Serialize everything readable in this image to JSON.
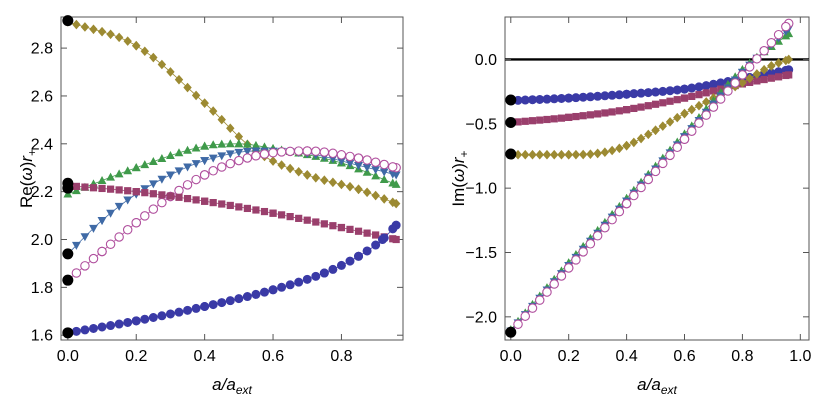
{
  "chart_data": [
    {
      "type": "scatter",
      "title": "",
      "xlabel": "a/a_ext",
      "ylabel": "Re(ω)r_+",
      "xlim": [
        -0.02,
        0.98
      ],
      "ylim": [
        1.58,
        2.93
      ],
      "xticks": [
        0.0,
        0.2,
        0.4,
        0.6,
        0.8
      ],
      "xtick_labels": [
        "0.0",
        "0.2",
        "0.4",
        "0.6",
        "0.8"
      ],
      "yticks": [
        1.6,
        1.8,
        2.0,
        2.2,
        2.4,
        2.6,
        2.8
      ],
      "ytick_labels": [
        "1.6",
        "1.8",
        "2.0",
        "2.2",
        "2.4",
        "2.6",
        "2.8"
      ],
      "black_points": [
        {
          "x": 0.0,
          "y": 2.915
        },
        {
          "x": 0.0,
          "y": 2.235
        },
        {
          "x": 0.0,
          "y": 2.215
        },
        {
          "x": 0.0,
          "y": 1.94
        },
        {
          "x": 0.0,
          "y": 1.83
        },
        {
          "x": 0.0,
          "y": 1.61
        }
      ],
      "series": [
        {
          "name": "olive-diamonds",
          "marker": "diamond",
          "color": "#9c8a32",
          "x": [
            0.0,
            0.2,
            0.4,
            0.55,
            0.7,
            0.85,
            0.96
          ],
          "y": [
            2.91,
            2.81,
            2.57,
            2.37,
            2.27,
            2.21,
            2.15
          ]
        },
        {
          "name": "green-triangles",
          "marker": "triangle-up",
          "color": "#3f9a4a",
          "x": [
            0.0,
            0.2,
            0.4,
            0.5,
            0.6,
            0.8,
            0.96
          ],
          "y": [
            2.19,
            2.3,
            2.39,
            2.4,
            2.38,
            2.32,
            2.23
          ]
        },
        {
          "name": "blue-triangles-down",
          "marker": "triangle-down",
          "color": "#3f6aa6",
          "x": [
            0.0,
            0.1,
            0.2,
            0.3,
            0.4,
            0.55,
            0.7,
            0.85,
            0.96
          ],
          "y": [
            1.94,
            2.08,
            2.19,
            2.27,
            2.33,
            2.37,
            2.36,
            2.31,
            2.27
          ]
        },
        {
          "name": "magenta-open-circles",
          "marker": "open-circle",
          "color": "#b0509e",
          "x": [
            0.0,
            0.1,
            0.2,
            0.3,
            0.4,
            0.55,
            0.7,
            0.85,
            0.96
          ],
          "y": [
            1.83,
            1.95,
            2.07,
            2.18,
            2.27,
            2.35,
            2.37,
            2.34,
            2.3
          ]
        },
        {
          "name": "purple-squares",
          "marker": "square",
          "color": "#9a3f6c",
          "x": [
            0.0,
            0.2,
            0.4,
            0.6,
            0.8,
            0.96
          ],
          "y": [
            2.225,
            2.2,
            2.16,
            2.11,
            2.05,
            2.0
          ]
        },
        {
          "name": "navy-circles",
          "marker": "circle",
          "color": "#3a3aa6",
          "x": [
            0.0,
            0.2,
            0.4,
            0.6,
            0.75,
            0.85,
            0.92,
            0.96
          ],
          "y": [
            1.61,
            1.66,
            1.72,
            1.79,
            1.86,
            1.93,
            2.0,
            2.06
          ]
        }
      ]
    },
    {
      "type": "scatter",
      "title": "",
      "xlabel": "a/a_ext",
      "ylabel": "Im(ω)r_+",
      "xlim": [
        -0.02,
        1.03
      ],
      "ylim": [
        -2.18,
        0.33
      ],
      "xticks": [
        0.0,
        0.2,
        0.4,
        0.6,
        0.8,
        1.0
      ],
      "xtick_labels": [
        "0.0",
        "0.2",
        "0.4",
        "0.6",
        "0.8",
        "1.0"
      ],
      "yticks": [
        0.0,
        -0.5,
        -1.0,
        -1.5,
        -2.0
      ],
      "ytick_labels": [
        "0.0",
        "−0.5",
        "−1.0",
        "−1.5",
        "−2.0"
      ],
      "zero_line": true,
      "black_points": [
        {
          "x": 0.0,
          "y": -0.315
        },
        {
          "x": 0.0,
          "y": -0.49
        },
        {
          "x": 0.0,
          "y": -0.735
        },
        {
          "x": 0.0,
          "y": -2.12
        }
      ],
      "series": [
        {
          "name": "navy-circles",
          "marker": "circle",
          "color": "#3a3aa6",
          "x": [
            0.0,
            0.2,
            0.4,
            0.6,
            0.8,
            0.96
          ],
          "y": [
            -0.32,
            -0.3,
            -0.27,
            -0.23,
            -0.15,
            -0.08
          ]
        },
        {
          "name": "purple-squares",
          "marker": "square",
          "color": "#9a3f6c",
          "x": [
            0.0,
            0.2,
            0.4,
            0.6,
            0.8,
            0.96
          ],
          "y": [
            -0.49,
            -0.45,
            -0.39,
            -0.3,
            -0.19,
            -0.12
          ]
        },
        {
          "name": "olive-diamonds",
          "marker": "diamond",
          "color": "#9c8a32",
          "x": [
            0.0,
            0.2,
            0.3,
            0.4,
            0.5,
            0.6,
            0.7,
            0.8,
            0.9,
            0.96
          ],
          "y": [
            -0.74,
            -0.74,
            -0.73,
            -0.67,
            -0.55,
            -0.42,
            -0.3,
            -0.18,
            -0.05,
            0.0
          ]
        },
        {
          "name": "green-triangles",
          "marker": "triangle-up",
          "color": "#3f9a4a",
          "x": [
            0.0,
            0.2,
            0.4,
            0.6,
            0.8,
            0.96
          ],
          "y": [
            -2.1,
            -1.58,
            -1.08,
            -0.58,
            -0.08,
            0.2
          ]
        },
        {
          "name": "blue-triangles-down",
          "marker": "triangle-down",
          "color": "#3f6aa6",
          "x": [
            0.0,
            0.2,
            0.4,
            0.6,
            0.8,
            0.96
          ],
          "y": [
            -2.11,
            -1.6,
            -1.1,
            -0.6,
            -0.1,
            0.24
          ]
        },
        {
          "name": "magenta-open-circles",
          "marker": "open-circle",
          "color": "#b0509e",
          "x": [
            0.0,
            0.2,
            0.4,
            0.6,
            0.8,
            0.96
          ],
          "y": [
            -2.12,
            -1.62,
            -1.12,
            -0.62,
            -0.12,
            0.28
          ]
        }
      ]
    }
  ]
}
